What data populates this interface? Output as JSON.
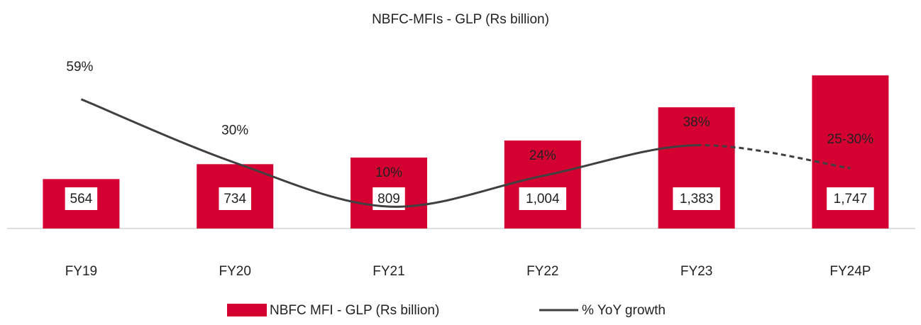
{
  "chart_data": {
    "type": "bar-line",
    "title": "NBFC-MFIs - GLP (Rs billion)",
    "categories": [
      "FY19",
      "FY20",
      "FY21",
      "FY22",
      "FY23",
      "FY24P"
    ],
    "series": [
      {
        "name": "NBFC MFI - GLP (Rs billion)",
        "color": "#d50032",
        "type": "bar",
        "values": [
          564,
          734,
          809,
          1004,
          1383,
          1747
        ],
        "value_labels": [
          "564",
          "734",
          "809",
          "1,004",
          "1,383",
          "1,747"
        ]
      },
      {
        "name": "% YoY growth",
        "color": "#404040",
        "type": "line",
        "axis": "y2",
        "values": [
          59,
          30,
          10,
          24,
          38,
          27.5
        ],
        "value_labels": [
          "59%",
          "30%",
          "10%",
          "24%",
          "38%",
          "25-30%"
        ]
      }
    ],
    "ylim": [
      0,
      2000
    ],
    "y2lim": [
      0,
      80
    ],
    "legend": "bottom"
  }
}
